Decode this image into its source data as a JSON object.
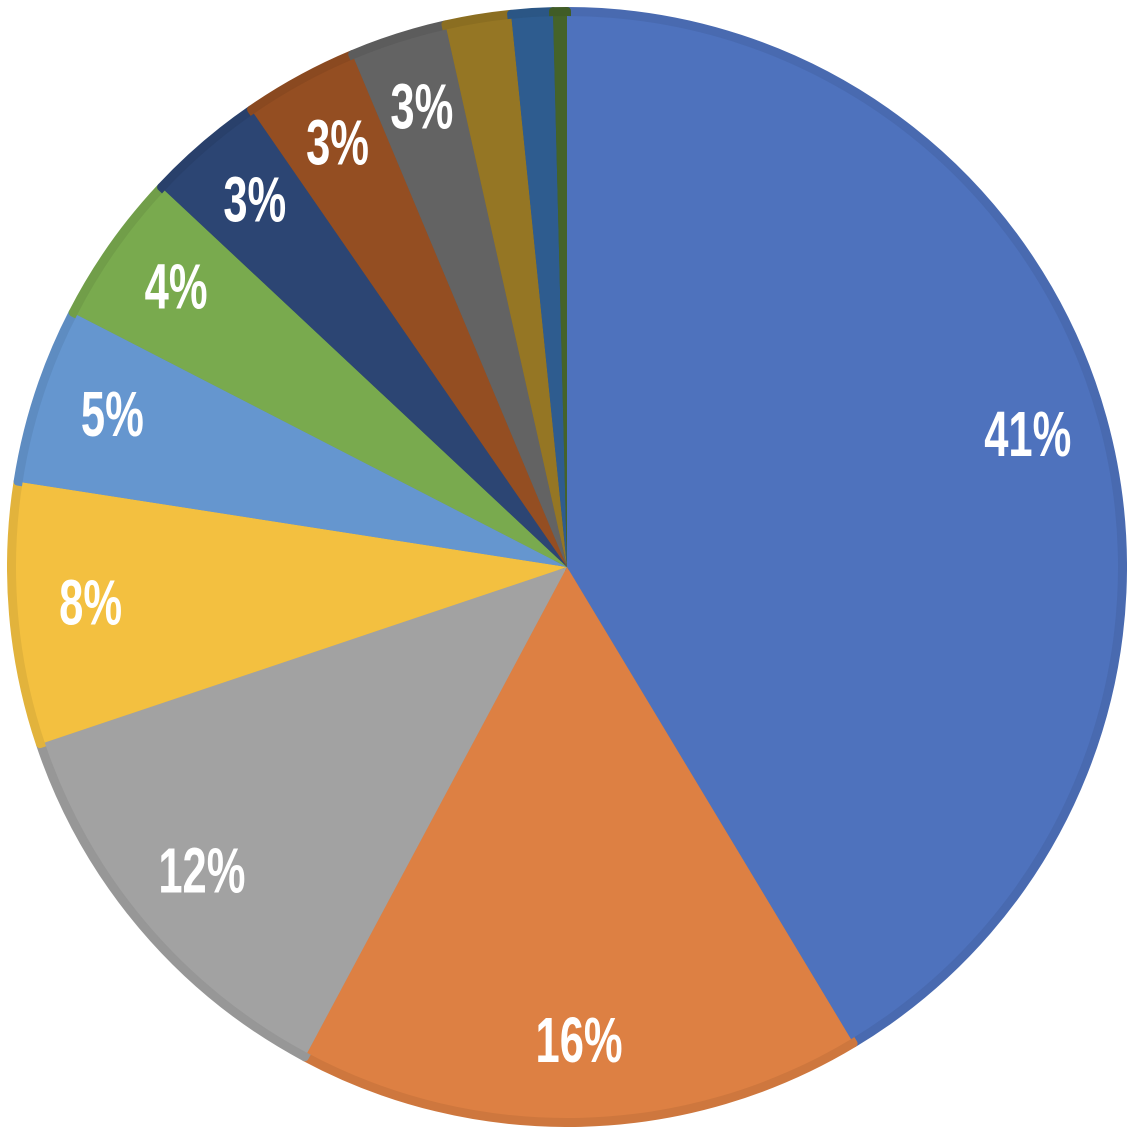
{
  "chart_data": {
    "type": "pie",
    "values": [
      41.3,
      16.4,
      12,
      7.6,
      5.1,
      4.4,
      3.4,
      3.3,
      2.8,
      1.9,
      1.2,
      0.4
    ],
    "value_labels": [
      "41%",
      "16%",
      "12%",
      "8%",
      "5%",
      "4%",
      "3%",
      "3%",
      "3%",
      null,
      null,
      null
    ],
    "colors": [
      "#4e72bd",
      "#dd8043",
      "#a2a2a2",
      "#f3c040",
      "#6596cf",
      "#79aa4e",
      "#2c4573",
      "#944e22",
      "#636363",
      "#957624",
      "#2e5c8f",
      "#456329"
    ]
  }
}
